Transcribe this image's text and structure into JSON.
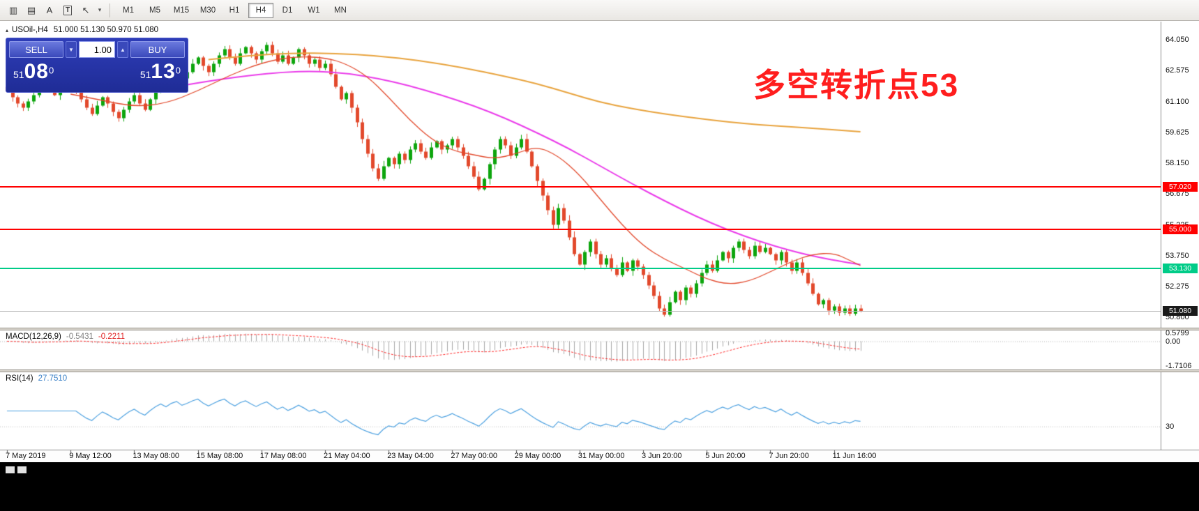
{
  "toolbar": {
    "icons": [
      {
        "name": "chart-tool-icon",
        "glyph": "▥"
      },
      {
        "name": "indicator-list-icon",
        "glyph": "▤"
      },
      {
        "name": "text-label-icon",
        "glyph": "A"
      },
      {
        "name": "text-box-icon",
        "glyph": "T",
        "boxed": true
      },
      {
        "name": "arrow-tools-icon",
        "glyph": "↖"
      },
      {
        "name": "dropdown-caret-icon",
        "glyph": "▾",
        "small": true
      }
    ],
    "timeframes": [
      "M1",
      "M5",
      "M15",
      "M30",
      "H1",
      "H4",
      "D1",
      "W1",
      "MN"
    ],
    "active_timeframe": "H4"
  },
  "chart_header": {
    "collapse": "▴",
    "symbol_period": "USOil-,H4",
    "ohlc": "51.000 51.130 50.970 51.080"
  },
  "trade_panel": {
    "sell_label": "SELL",
    "buy_label": "BUY",
    "lot": "1.00",
    "lot_down_glyph": "▼",
    "lot_up_glyph": "▲",
    "sell_price": {
      "whole": "51",
      "big": "08",
      "sup": "0"
    },
    "buy_price": {
      "whole": "51",
      "big": "13",
      "sup": "0"
    }
  },
  "annotation": {
    "text": "多空转折点53",
    "color": "#ff1e1e"
  },
  "indicators": {
    "macd": {
      "label": "MACD(12,26,9)",
      "main_value": "-0.5431",
      "signal_value": "-0.2211",
      "axis_labels": [
        "0.5799",
        "0.00",
        "-1.7106"
      ]
    },
    "rsi": {
      "label": "RSI(14)",
      "value": "27.7510",
      "axis_labels": [
        "30"
      ]
    }
  },
  "colors": {
    "candle_up": "#0da50d",
    "candle_down": "#e2492c",
    "ma_slow": "#e8a33d",
    "ma_mid": "#ea3bea",
    "ma_fast": "#e2492c",
    "level_red": "#ff0000",
    "level_green": "#00cc88",
    "bid_line": "#b8b8b8",
    "bid_tag_bg": "#1a1a1a",
    "macd_hist": "#a8a8a8",
    "macd_signal": "#ff2a2a",
    "rsi_line": "#4da1e0"
  },
  "chart_data": {
    "type": "candlestick",
    "title": "USOil-,H4",
    "ylim": [
      50.28,
      64.92
    ],
    "y_tick_labels": [
      "64.050",
      "62.575",
      "61.100",
      "59.625",
      "58.150",
      "56.675",
      "55.225",
      "53.750",
      "52.275",
      "50.800"
    ],
    "x_tick_labels": [
      "7 May 2019",
      "9 May 12:00",
      "13 May 08:00",
      "15 May 08:00",
      "17 May 08:00",
      "21 May 04:00",
      "23 May 04:00",
      "27 May 00:00",
      "29 May 00:00",
      "31 May 00:00",
      "3 Jun 20:00",
      "5 Jun 20:00",
      "7 Jun 20:00",
      "11 Jun 16:00"
    ],
    "x_ticks_every_n_candles": 12,
    "closes": [
      61.6,
      61.3,
      61.0,
      60.8,
      61.1,
      61.4,
      61.7,
      61.9,
      61.6,
      61.4,
      61.8,
      62.1,
      61.9,
      61.6,
      61.2,
      60.8,
      60.5,
      60.9,
      61.3,
      61.0,
      60.6,
      60.3,
      60.7,
      61.1,
      61.4,
      61.0,
      60.7,
      61.2,
      61.7,
      62.1,
      61.8,
      62.3,
      62.6,
      62.2,
      62.5,
      62.9,
      63.2,
      62.8,
      62.5,
      62.9,
      63.3,
      63.6,
      63.2,
      62.9,
      63.4,
      63.7,
      63.4,
      63.1,
      63.5,
      63.8,
      63.4,
      63.0,
      63.3,
      62.9,
      63.2,
      63.6,
      63.3,
      62.9,
      63.1,
      62.7,
      62.9,
      62.4,
      61.8,
      61.2,
      61.5,
      60.8,
      60.1,
      59.3,
      58.6,
      57.9,
      57.4,
      58.0,
      58.4,
      58.1,
      58.6,
      58.3,
      58.8,
      59.1,
      58.7,
      58.4,
      58.9,
      59.2,
      58.8,
      59.0,
      59.3,
      58.9,
      58.5,
      58.0,
      57.5,
      56.9,
      57.4,
      58.1,
      58.8,
      59.3,
      59.0,
      58.5,
      58.9,
      59.3,
      58.7,
      58.0,
      57.3,
      56.6,
      55.9,
      55.2,
      56.0,
      55.4,
      54.6,
      53.8,
      53.3,
      53.9,
      54.4,
      53.8,
      53.3,
      53.6,
      53.1,
      52.8,
      53.4,
      53.0,
      53.5,
      53.2,
      52.8,
      52.3,
      51.8,
      51.2,
      50.9,
      51.5,
      52.0,
      51.6,
      52.2,
      51.9,
      52.4,
      52.9,
      53.3,
      53.0,
      53.5,
      53.9,
      53.6,
      54.1,
      54.4,
      54.0,
      53.7,
      54.2,
      53.9,
      54.1,
      53.8,
      53.5,
      53.9,
      53.4,
      53.0,
      53.4,
      52.9,
      52.4,
      51.9,
      51.4,
      51.6,
      51.1,
      51.3,
      51.0,
      51.2,
      50.95,
      51.2,
      51.08
    ],
    "moving_averages": [
      {
        "name": "ma-slow-orange",
        "color": "#e8a33d",
        "width": 2,
        "points": [
          [
            38,
            63.1
          ],
          [
            46,
            63.3
          ],
          [
            54,
            63.42
          ],
          [
            62,
            63.4
          ],
          [
            70,
            63.28
          ],
          [
            78,
            63.05
          ],
          [
            86,
            62.72
          ],
          [
            94,
            62.3
          ],
          [
            100,
            61.95
          ],
          [
            106,
            61.5
          ],
          [
            112,
            61.05
          ],
          [
            118,
            60.75
          ],
          [
            124,
            60.5
          ],
          [
            130,
            60.3
          ],
          [
            136,
            60.12
          ],
          [
            142,
            59.98
          ],
          [
            148,
            59.88
          ],
          [
            154,
            59.78
          ],
          [
            161,
            59.65
          ]
        ]
      },
      {
        "name": "ma-mid-magenta",
        "color": "#ea3bea",
        "width": 2,
        "points": [
          [
            34,
            61.9
          ],
          [
            40,
            62.15
          ],
          [
            46,
            62.35
          ],
          [
            52,
            62.5
          ],
          [
            58,
            62.55
          ],
          [
            64,
            62.45
          ],
          [
            70,
            62.2
          ],
          [
            76,
            61.85
          ],
          [
            82,
            61.4
          ],
          [
            88,
            60.9
          ],
          [
            94,
            60.3
          ],
          [
            100,
            59.6
          ],
          [
            106,
            58.85
          ],
          [
            112,
            58.0
          ],
          [
            118,
            57.15
          ],
          [
            124,
            56.35
          ],
          [
            130,
            55.6
          ],
          [
            136,
            54.95
          ],
          [
            142,
            54.4
          ],
          [
            148,
            53.95
          ],
          [
            153,
            53.65
          ],
          [
            158,
            53.42
          ],
          [
            161,
            53.3
          ]
        ]
      },
      {
        "name": "ma-fast-red",
        "color": "#e2492c",
        "width": 1.3,
        "points": [
          [
            12,
            61.45
          ],
          [
            18,
            61.15
          ],
          [
            24,
            60.85
          ],
          [
            30,
            61.0
          ],
          [
            36,
            61.6
          ],
          [
            42,
            62.35
          ],
          [
            48,
            62.95
          ],
          [
            54,
            63.25
          ],
          [
            60,
            63.2
          ],
          [
            64,
            62.9
          ],
          [
            68,
            62.3
          ],
          [
            72,
            61.3
          ],
          [
            76,
            60.2
          ],
          [
            80,
            59.3
          ],
          [
            84,
            58.75
          ],
          [
            88,
            58.55
          ],
          [
            92,
            58.35
          ],
          [
            96,
            58.6
          ],
          [
            100,
            58.95
          ],
          [
            104,
            58.5
          ],
          [
            108,
            57.6
          ],
          [
            112,
            56.4
          ],
          [
            116,
            55.2
          ],
          [
            120,
            54.2
          ],
          [
            124,
            53.55
          ],
          [
            128,
            53.1
          ],
          [
            132,
            52.6
          ],
          [
            136,
            52.35
          ],
          [
            140,
            52.5
          ],
          [
            144,
            52.95
          ],
          [
            148,
            53.45
          ],
          [
            152,
            53.8
          ],
          [
            156,
            53.85
          ],
          [
            159,
            53.5
          ],
          [
            161,
            53.25
          ]
        ]
      }
    ],
    "levels": [
      {
        "label": "57.020",
        "price": 57.02,
        "color": "#ff0000"
      },
      {
        "label": "55.000",
        "price": 55.0,
        "color": "#ff0000"
      },
      {
        "label": "53.130",
        "price": 53.13,
        "color": "#00cc88"
      },
      {
        "label": "51.080",
        "price": 51.08,
        "color": "#b8b8b8",
        "tag_bg": "#1a1a1a",
        "style": "bid"
      }
    ],
    "macd": {
      "params": [
        12,
        26,
        9
      ],
      "range": [
        -1.95,
        0.75
      ]
    },
    "rsi": {
      "period": 14,
      "levels": [
        30
      ]
    }
  }
}
